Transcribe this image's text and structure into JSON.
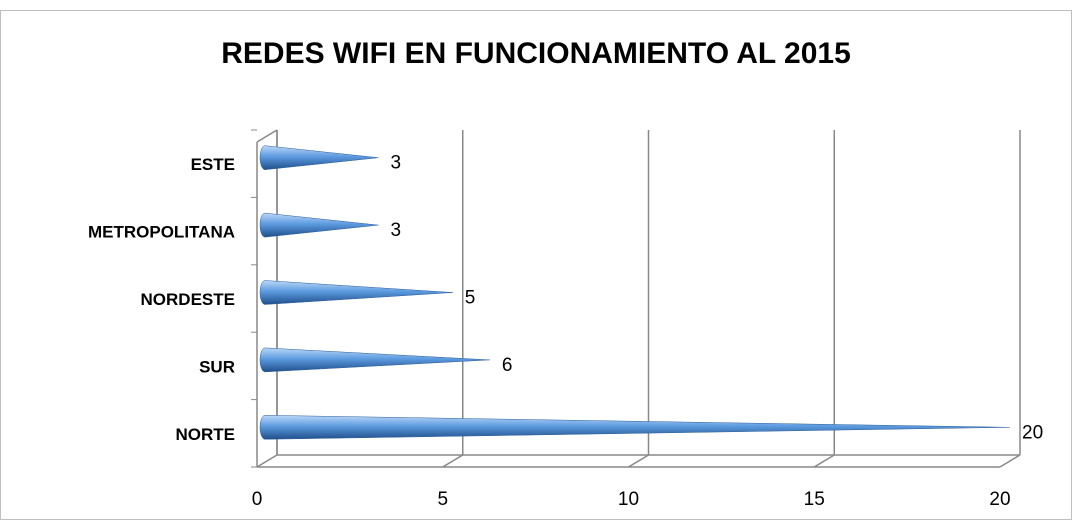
{
  "chart_data": {
    "type": "bar",
    "orientation": "horizontal",
    "shape": "cone",
    "title": "REDES WIFI EN FUNCIONAMIENTO AL 2015",
    "categories": [
      "NORTE",
      "SUR",
      "NORDESTE",
      "METROPOLITANA",
      "ESTE"
    ],
    "values": [
      20,
      6,
      5,
      3,
      3
    ],
    "color": "#4a8fdc",
    "xlim": [
      0,
      20
    ],
    "xticks": [
      0,
      5,
      10,
      15,
      20
    ],
    "grid": true
  }
}
